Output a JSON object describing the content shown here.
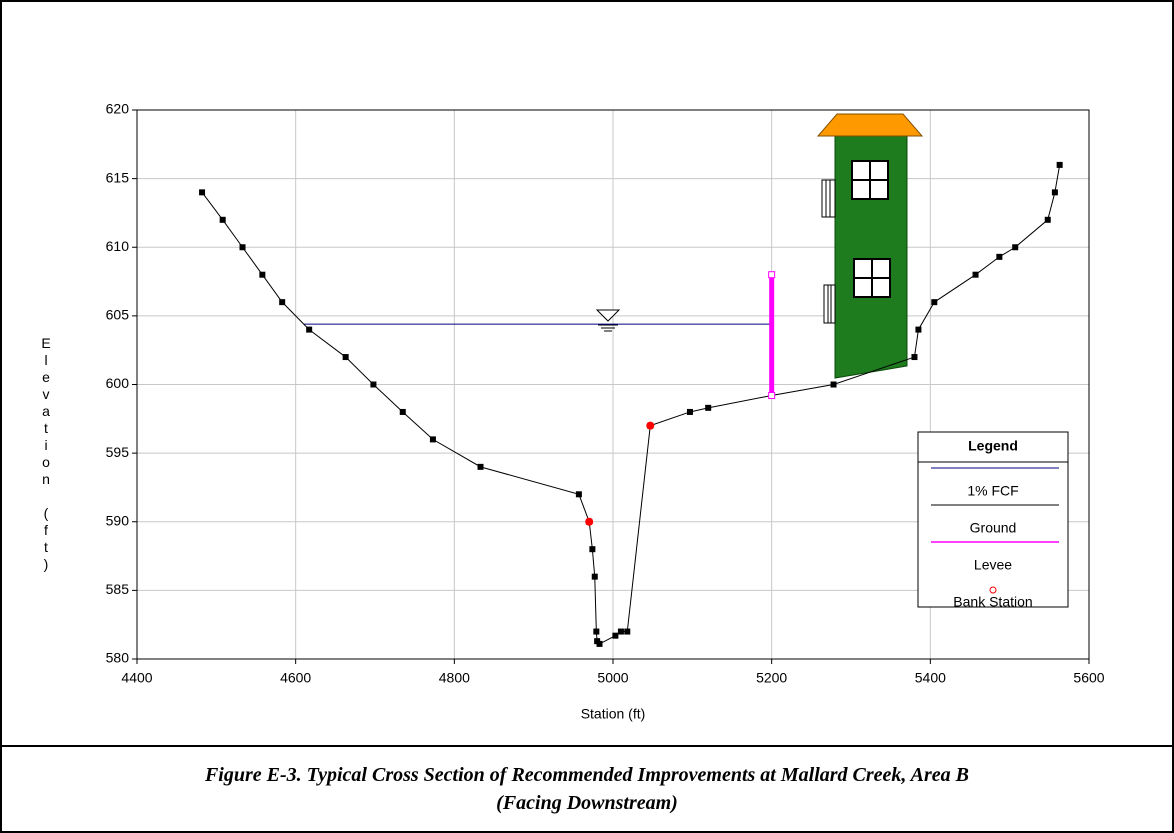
{
  "chart_data": {
    "type": "line",
    "xlabel": "Station (ft)",
    "ylabel": "Elevation (ft)",
    "xlim": [
      4400,
      5600
    ],
    "ylim": [
      580,
      620
    ],
    "xticks": [
      4400,
      4600,
      4800,
      5000,
      5200,
      5400,
      5600
    ],
    "yticks": [
      580,
      585,
      590,
      595,
      600,
      605,
      610,
      615,
      620
    ],
    "grid": true,
    "legend_title": "Legend",
    "series": [
      {
        "name": "1% FCF",
        "color": "#000080",
        "mode": "line",
        "width": 1,
        "x": [
          4610,
          5200
        ],
        "values": [
          604.4,
          604.4
        ]
      },
      {
        "name": "Ground",
        "color": "#000000",
        "mode": "line-markers",
        "width": 1,
        "x": [
          4482,
          4508,
          4533,
          4558,
          4583,
          4617,
          4663,
          4698,
          4735,
          4773,
          4833,
          4957,
          4970,
          4974,
          4977,
          4979,
          4980,
          4983,
          5003,
          5010,
          5018,
          5047,
          5097,
          5120,
          5200,
          5278,
          5380,
          5385,
          5405,
          5457,
          5487,
          5507,
          5548,
          5557,
          5563
        ],
        "values": [
          614,
          612,
          610,
          608,
          606,
          604,
          602,
          600,
          598,
          596,
          594,
          592,
          590,
          588,
          586,
          582,
          581.3,
          581.1,
          581.7,
          582,
          582,
          597,
          598,
          598.3,
          599.2,
          600,
          602,
          604,
          606,
          608,
          609.3,
          610,
          612,
          614,
          616
        ]
      },
      {
        "name": "Levee",
        "color": "#ff00ff",
        "mode": "line",
        "width": 5,
        "x": [
          5200,
          5200
        ],
        "values": [
          599.2,
          608
        ]
      },
      {
        "name": "Bank Station",
        "color": "#ff0000",
        "mode": "markers",
        "width": 1,
        "x": [
          4970,
          5047
        ],
        "values": [
          590,
          597
        ]
      }
    ],
    "caption": [
      "Figure E-3.  Typical Cross Section of Recommended Improvements at Mallard Creek, Area B",
      "(Facing Downstream)"
    ]
  }
}
